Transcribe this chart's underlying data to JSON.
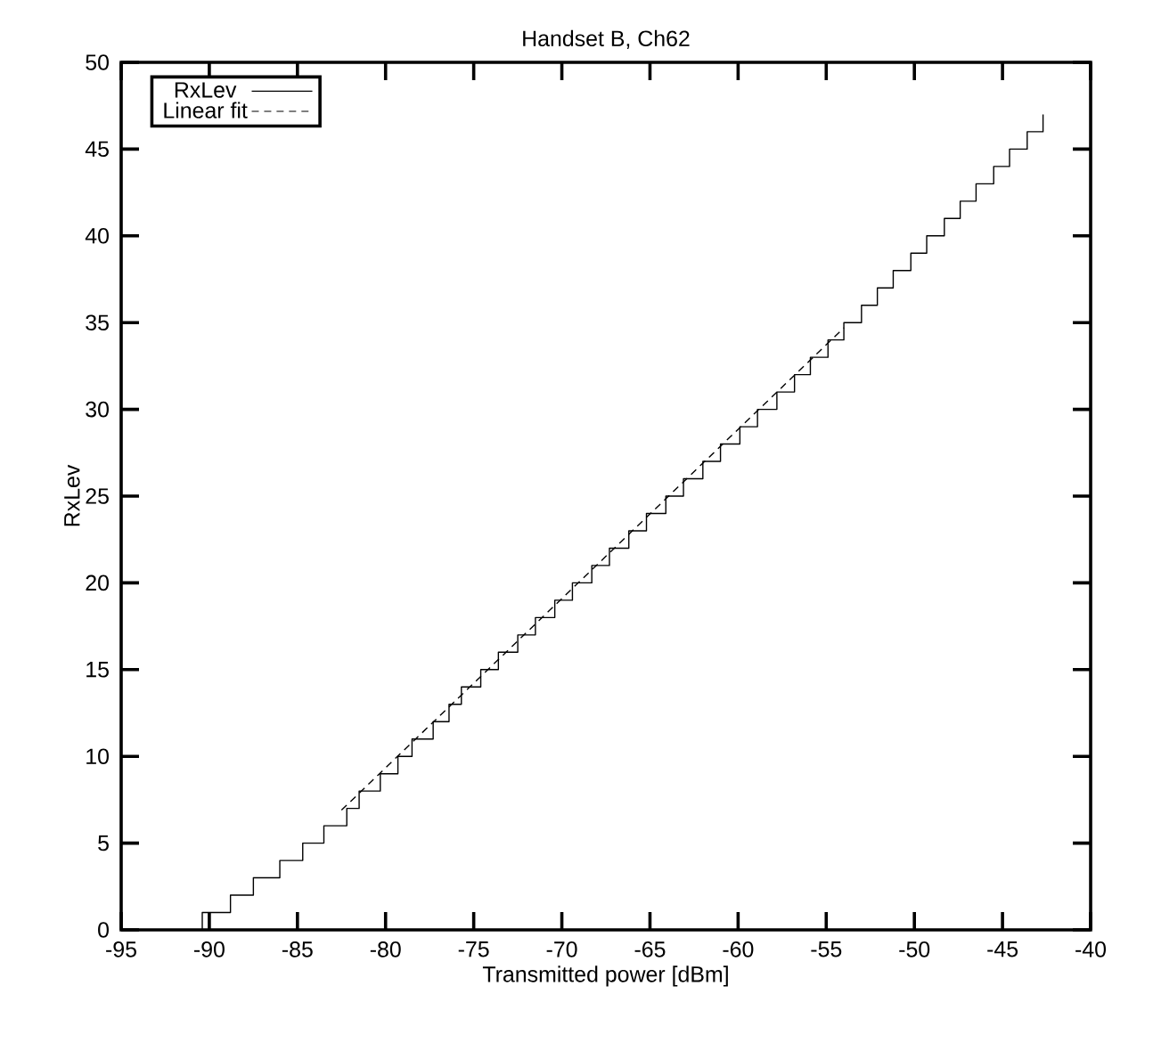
{
  "chart_data": {
    "type": "line",
    "title": "Handset B, Ch62",
    "xlabel": "Transmitted power [dBm]",
    "ylabel": "RxLev",
    "xlim": [
      -95,
      -40
    ],
    "xticks": [
      -95,
      -90,
      -85,
      -80,
      -75,
      -70,
      -65,
      -60,
      -55,
      -50,
      -45,
      -40
    ],
    "ylim": [
      0,
      50
    ],
    "yticks": [
      0,
      5,
      10,
      15,
      20,
      25,
      30,
      35,
      40,
      45,
      50
    ],
    "grid": false,
    "legend": "top left",
    "marker": "none",
    "series": [
      {
        "name": "RxLev",
        "type": "step",
        "color": "#000000",
        "line_style": "solid",
        "x": [
          -90.7,
          -90.4,
          -88.8,
          -87.5,
          -86.0,
          -84.7,
          -83.5,
          -82.2,
          -81.5,
          -80.3,
          -79.3,
          -78.5,
          -77.3,
          -76.4,
          -75.7,
          -74.6,
          -73.6,
          -72.5,
          -71.5,
          -70.4,
          -69.4,
          -68.3,
          -67.3,
          -66.2,
          -65.2,
          -64.1,
          -63.1,
          -62.0,
          -61.0,
          -59.9,
          -58.9,
          -57.8,
          -56.8,
          -55.9,
          -54.9,
          -54.0,
          -53.0,
          -52.1,
          -51.2,
          -50.2,
          -49.3,
          -48.3,
          -47.4,
          -46.5,
          -45.5,
          -44.6,
          -43.6,
          -42.7
        ],
        "values": [
          0,
          1,
          2,
          3,
          4,
          5,
          6,
          7,
          8,
          9,
          10,
          11,
          12,
          13,
          14,
          15,
          16,
          17,
          18,
          19,
          20,
          21,
          22,
          23,
          24,
          25,
          26,
          27,
          28,
          29,
          30,
          31,
          32,
          33,
          34,
          35,
          36,
          37,
          38,
          39,
          40,
          41,
          42,
          43,
          44,
          45,
          46,
          47
        ]
      },
      {
        "name": "Linear fit",
        "type": "line",
        "color": "#000000",
        "line_style": "dashed",
        "x": [
          -82.5,
          -54.0
        ],
        "values": [
          6.9,
          34.7
        ]
      }
    ]
  }
}
